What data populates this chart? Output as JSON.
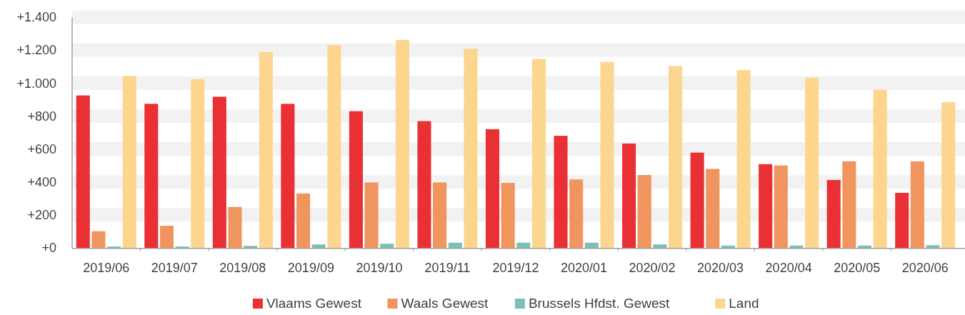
{
  "chart_data": {
    "type": "bar",
    "categories": [
      "2019/06",
      "2019/07",
      "2019/08",
      "2019/09",
      "2019/10",
      "2019/11",
      "2019/12",
      "2020/01",
      "2020/02",
      "2020/03",
      "2020/04",
      "2020/05",
      "2020/06"
    ],
    "series": [
      {
        "name": "Vlaams Gewest",
        "color": "#e83035",
        "values": [
          925,
          874,
          917,
          874,
          829,
          769,
          720,
          680,
          633,
          578,
          508,
          412,
          334
        ]
      },
      {
        "name": "Waals Gewest",
        "color": "#f0955d",
        "values": [
          101,
          134,
          248,
          330,
          397,
          397,
          394,
          415,
          442,
          479,
          500,
          525,
          525
        ]
      },
      {
        "name": "Brussels Hfdst. Gewest",
        "color": "#7bbfbd",
        "values": [
          8,
          8,
          12,
          21,
          25,
          31,
          31,
          31,
          21,
          14,
          14,
          14,
          16
        ]
      },
      {
        "name": "Land",
        "color": "#fcd58f",
        "values": [
          1043,
          1024,
          1189,
          1231,
          1262,
          1208,
          1146,
          1128,
          1103,
          1078,
          1032,
          960,
          884
        ]
      }
    ],
    "ylim": [
      0,
      1400
    ],
    "yticks": [
      {
        "value": 0,
        "label": "+0"
      },
      {
        "value": 200,
        "label": "+200"
      },
      {
        "value": 400,
        "label": "+400"
      },
      {
        "value": 600,
        "label": "+600"
      },
      {
        "value": 800,
        "label": "+800"
      },
      {
        "value": 1000,
        "label": "+1.000"
      },
      {
        "value": 1200,
        "label": "+1.200"
      },
      {
        "value": 1400,
        "label": "+1.400"
      }
    ],
    "grid": "y",
    "legend": "bottom"
  }
}
